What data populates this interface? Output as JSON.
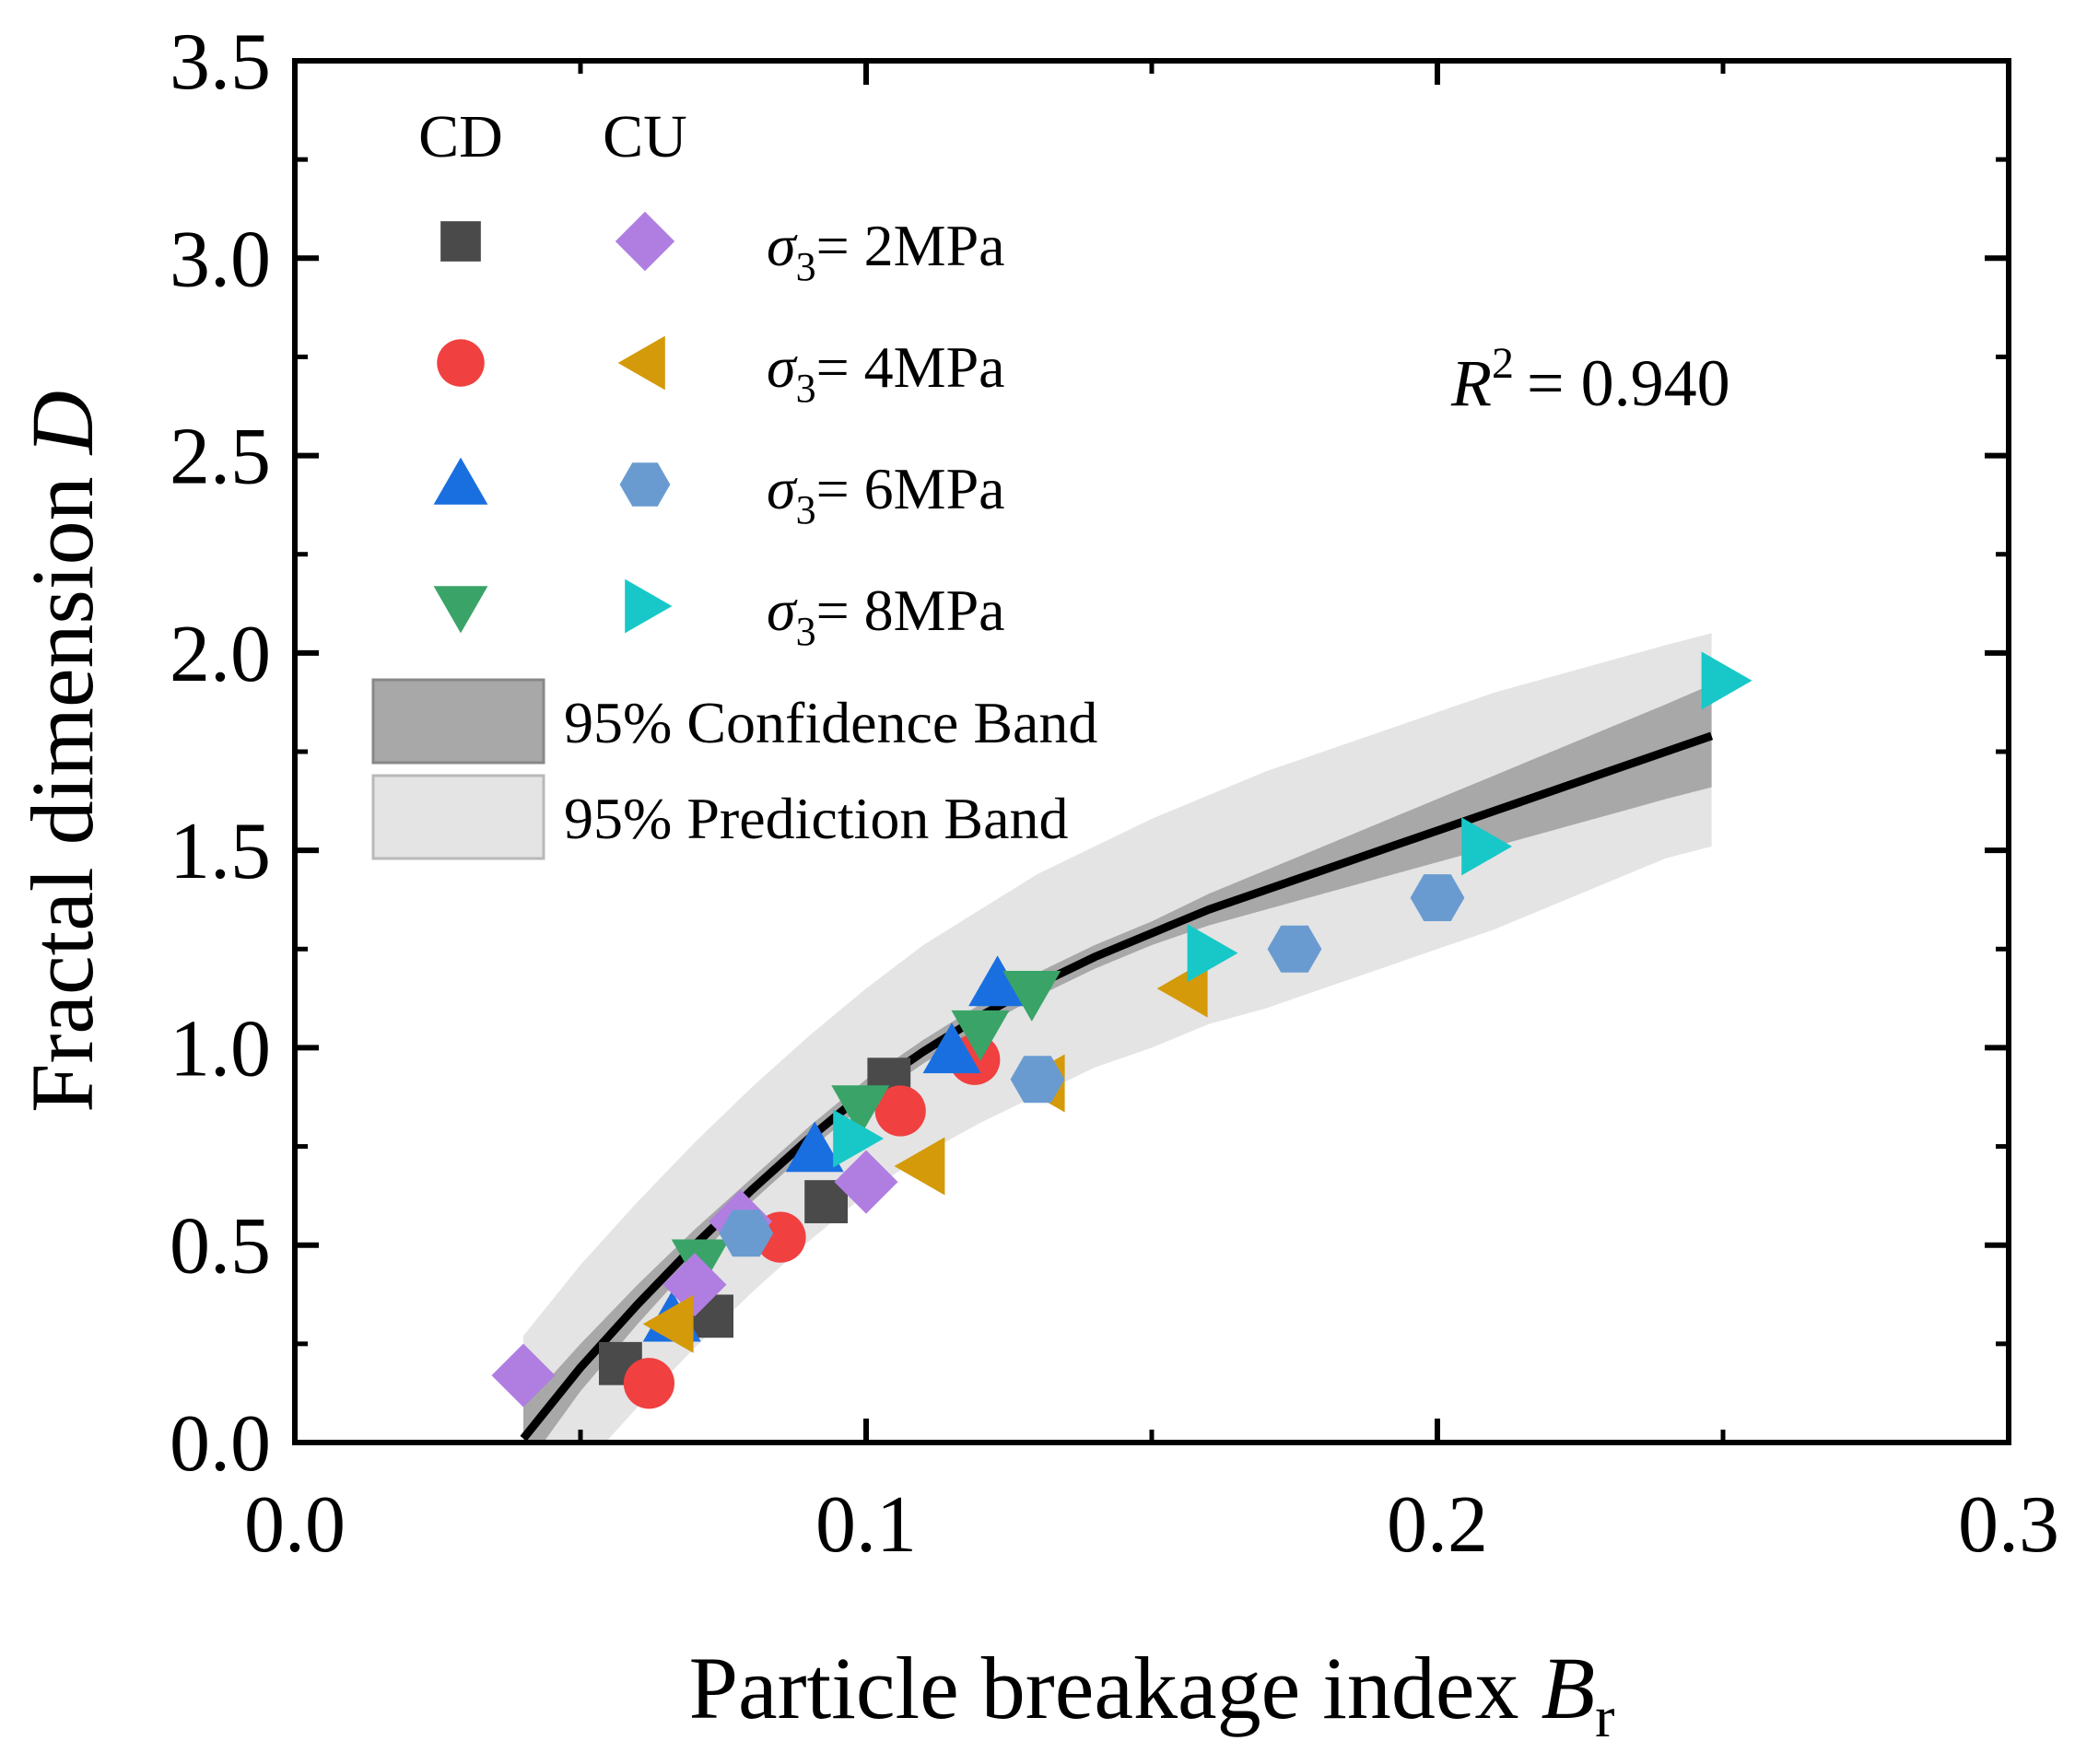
{
  "colors": {
    "cd_2": "#4a4a4a",
    "cd_4": "#f04040",
    "cd_6": "#1a6fe0",
    "cd_8": "#3aa468",
    "cu_2": "#b07ee0",
    "cu_4": "#d49a0a",
    "cu_6": "#6a9bd0",
    "cu_8": "#18c8c8",
    "confidence_band": "#a8a8a8",
    "prediction_band": "#e4e4e4",
    "fit_line": "#000000"
  },
  "chart_data": {
    "type": "scatter",
    "title": "",
    "xlabel": "Particle breakage index",
    "xlabel_symbol": "B",
    "xlabel_subscript": "r",
    "ylabel": "Fractal dimension",
    "ylabel_symbol": "D",
    "xlim": [
      0.0,
      0.3
    ],
    "ylim": [
      0.0,
      3.5
    ],
    "xticks": [
      "0.0",
      "0.1",
      "0.2",
      "0.3"
    ],
    "yticks": [
      "0.0",
      "0.5",
      "1.0",
      "1.5",
      "2.0",
      "2.5",
      "3.0",
      "3.5"
    ],
    "grid": false,
    "legend": {
      "position": "top-left",
      "headers": [
        "CD",
        "CU"
      ],
      "entries": [
        {
          "label": "= 2MPa",
          "symbol": "σ",
          "subscript": "3"
        },
        {
          "label": "= 4MPa",
          "symbol": "σ",
          "subscript": "3"
        },
        {
          "label": "= 6MPa",
          "symbol": "σ",
          "subscript": "3"
        },
        {
          "label": "= 8MPa",
          "symbol": "σ",
          "subscript": "3"
        }
      ],
      "bands": [
        "95% Confidence Band",
        "95% Prediction Band"
      ]
    },
    "annotation": {
      "symbol": "R",
      "superscript": "2",
      "text": "= 0.940"
    },
    "fit": {
      "x": [
        0.04,
        0.05,
        0.06,
        0.07,
        0.08,
        0.09,
        0.1,
        0.11,
        0.12,
        0.13,
        0.14,
        0.15,
        0.16,
        0.17,
        0.18,
        0.19,
        0.2,
        0.21,
        0.22,
        0.23,
        0.24,
        0.248
      ],
      "y": [
        0.01,
        0.19,
        0.35,
        0.5,
        0.64,
        0.77,
        0.89,
        0.99,
        1.08,
        1.16,
        1.23,
        1.29,
        1.35,
        1.4,
        1.45,
        1.5,
        1.55,
        1.6,
        1.65,
        1.7,
        1.75,
        1.79
      ],
      "confidence_upper": [
        0.09,
        0.25,
        0.4,
        0.54,
        0.67,
        0.8,
        0.92,
        1.02,
        1.11,
        1.19,
        1.26,
        1.32,
        1.39,
        1.45,
        1.51,
        1.57,
        1.63,
        1.69,
        1.75,
        1.81,
        1.87,
        1.92
      ],
      "confidence_lower": [
        -0.07,
        0.13,
        0.3,
        0.46,
        0.61,
        0.74,
        0.86,
        0.96,
        1.05,
        1.13,
        1.2,
        1.26,
        1.31,
        1.35,
        1.39,
        1.43,
        1.47,
        1.51,
        1.55,
        1.59,
        1.63,
        1.66
      ],
      "prediction_upper": [
        0.27,
        0.45,
        0.61,
        0.76,
        0.9,
        1.03,
        1.15,
        1.26,
        1.35,
        1.44,
        1.51,
        1.58,
        1.64,
        1.7,
        1.75,
        1.8,
        1.85,
        1.9,
        1.94,
        1.98,
        2.02,
        2.05
      ],
      "prediction_lower": [
        -0.25,
        -0.07,
        0.09,
        0.24,
        0.38,
        0.51,
        0.63,
        0.73,
        0.81,
        0.88,
        0.95,
        1.0,
        1.06,
        1.1,
        1.15,
        1.2,
        1.25,
        1.3,
        1.36,
        1.42,
        1.48,
        1.51
      ]
    },
    "series": [
      {
        "name": "CD σ3= 2MPa",
        "test": "CD",
        "marker": "square",
        "color_key": "cd_2",
        "x": [
          0.057,
          0.073,
          0.093,
          0.104
        ],
        "y": [
          0.2,
          0.32,
          0.61,
          0.92
        ]
      },
      {
        "name": "CD σ3= 4MPa",
        "test": "CD",
        "marker": "circle",
        "color_key": "cd_4",
        "x": [
          0.062,
          0.085,
          0.106,
          0.119
        ],
        "y": [
          0.15,
          0.52,
          0.84,
          0.97
        ]
      },
      {
        "name": "CD σ3= 6MPa",
        "test": "CD",
        "marker": "triangle-up",
        "color_key": "cd_6",
        "x": [
          0.066,
          0.091,
          0.115,
          0.123
        ],
        "y": [
          0.31,
          0.74,
          0.99,
          1.16
        ]
      },
      {
        "name": "CD σ3= 8MPa",
        "test": "CD",
        "marker": "triangle-down",
        "color_key": "cd_8",
        "x": [
          0.071,
          0.099,
          0.12,
          0.129
        ],
        "y": [
          0.46,
          0.85,
          1.04,
          1.14
        ]
      },
      {
        "name": "CU σ3= 2MPa",
        "test": "CU",
        "marker": "diamond",
        "color_key": "cu_2",
        "x": [
          0.04,
          0.07,
          0.078,
          0.1
        ],
        "y": [
          0.17,
          0.4,
          0.56,
          0.66
        ]
      },
      {
        "name": "CU σ3= 4MPa",
        "test": "CU",
        "marker": "triangle-left",
        "color_key": "cu_4",
        "x": [
          0.066,
          0.11,
          0.131,
          0.156
        ],
        "y": [
          0.3,
          0.7,
          0.91,
          1.15
        ]
      },
      {
        "name": "CU σ3= 6MPa",
        "test": "CU",
        "marker": "hexagon",
        "color_key": "cu_6",
        "x": [
          0.079,
          0.13,
          0.175,
          0.2
        ],
        "y": [
          0.53,
          0.92,
          1.25,
          1.38
        ]
      },
      {
        "name": "CU σ3= 8MPa",
        "test": "CU",
        "marker": "triangle-right",
        "color_key": "cu_8",
        "x": [
          0.098,
          0.16,
          0.208,
          0.25
        ],
        "y": [
          0.77,
          1.24,
          1.51,
          1.93
        ]
      }
    ]
  }
}
